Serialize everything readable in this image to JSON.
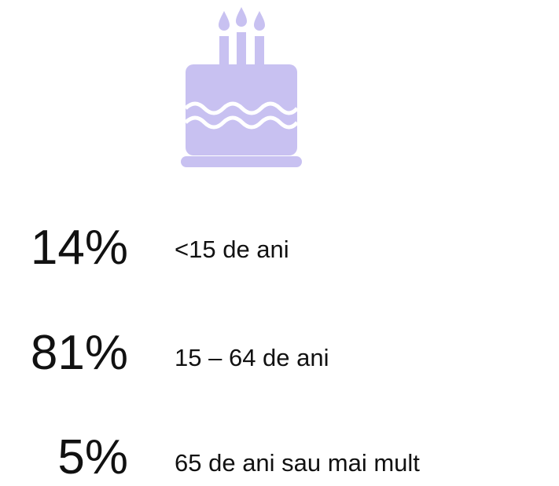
{
  "items": [
    {
      "percent": "14%",
      "label": "<15 de ani"
    },
    {
      "percent": "81%",
      "label": "15 – 64 de ani"
    },
    {
      "percent": "5%",
      "label": "65 de ani sau mai mult"
    }
  ]
}
